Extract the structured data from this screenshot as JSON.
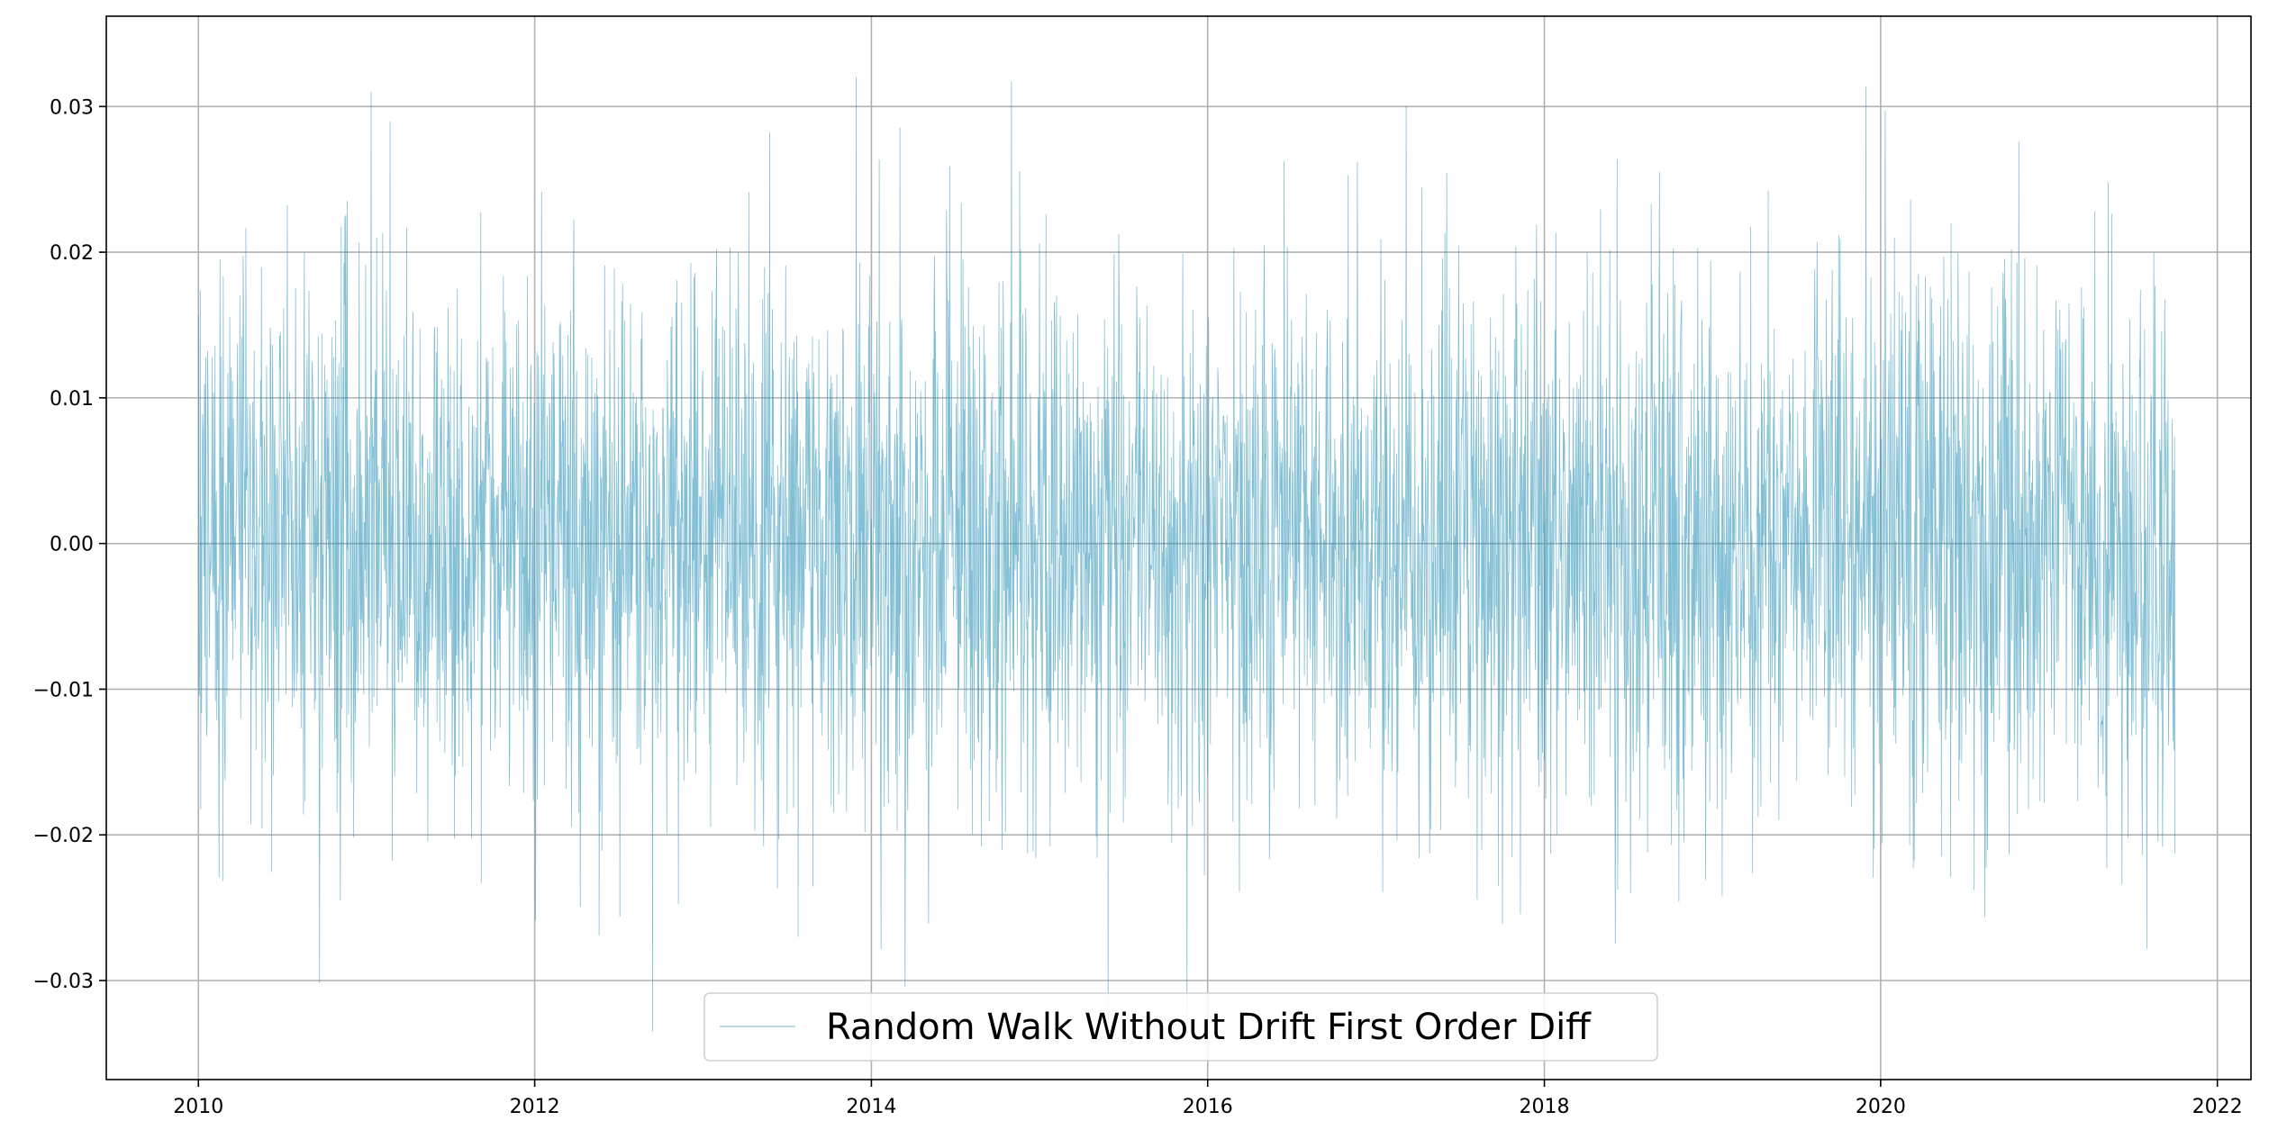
{
  "chart_data": {
    "type": "line",
    "title": "",
    "xlabel": "",
    "ylabel": "",
    "x_range": [
      "2010-01-01",
      "2021-10-01"
    ],
    "xlim": [
      "2009-06-15",
      "2022-03-15"
    ],
    "ylim": [
      -0.0368,
      0.0362
    ],
    "x_ticks": [
      {
        "value": "2010-01-01",
        "label": "2010"
      },
      {
        "value": "2012-01-01",
        "label": "2012"
      },
      {
        "value": "2014-01-01",
        "label": "2014"
      },
      {
        "value": "2016-01-01",
        "label": "2016"
      },
      {
        "value": "2018-01-01",
        "label": "2018"
      },
      {
        "value": "2020-01-01",
        "label": "2020"
      },
      {
        "value": "2022-01-01",
        "label": "2022"
      }
    ],
    "y_ticks": [
      {
        "value": 0.03,
        "label": "0.03"
      },
      {
        "value": 0.02,
        "label": "0.02"
      },
      {
        "value": 0.01,
        "label": "0.01"
      },
      {
        "value": 0.0,
        "label": "0.00"
      },
      {
        "value": -0.01,
        "label": "−0.01"
      },
      {
        "value": -0.02,
        "label": "−0.02"
      },
      {
        "value": -0.03,
        "label": "−0.03"
      }
    ],
    "grid": true,
    "legend_position": "bottom-center",
    "series": [
      {
        "name": "Random Walk Without Drift First Order Diff",
        "color": "#2E94B9",
        "frequency": "daily",
        "mean": 0.0,
        "std": 0.0095,
        "approx_min": -0.0335,
        "approx_max": 0.033
      }
    ],
    "colors": {
      "series": "#2E94B9",
      "grid": "#b0b0b0",
      "axes": "#000000"
    }
  }
}
